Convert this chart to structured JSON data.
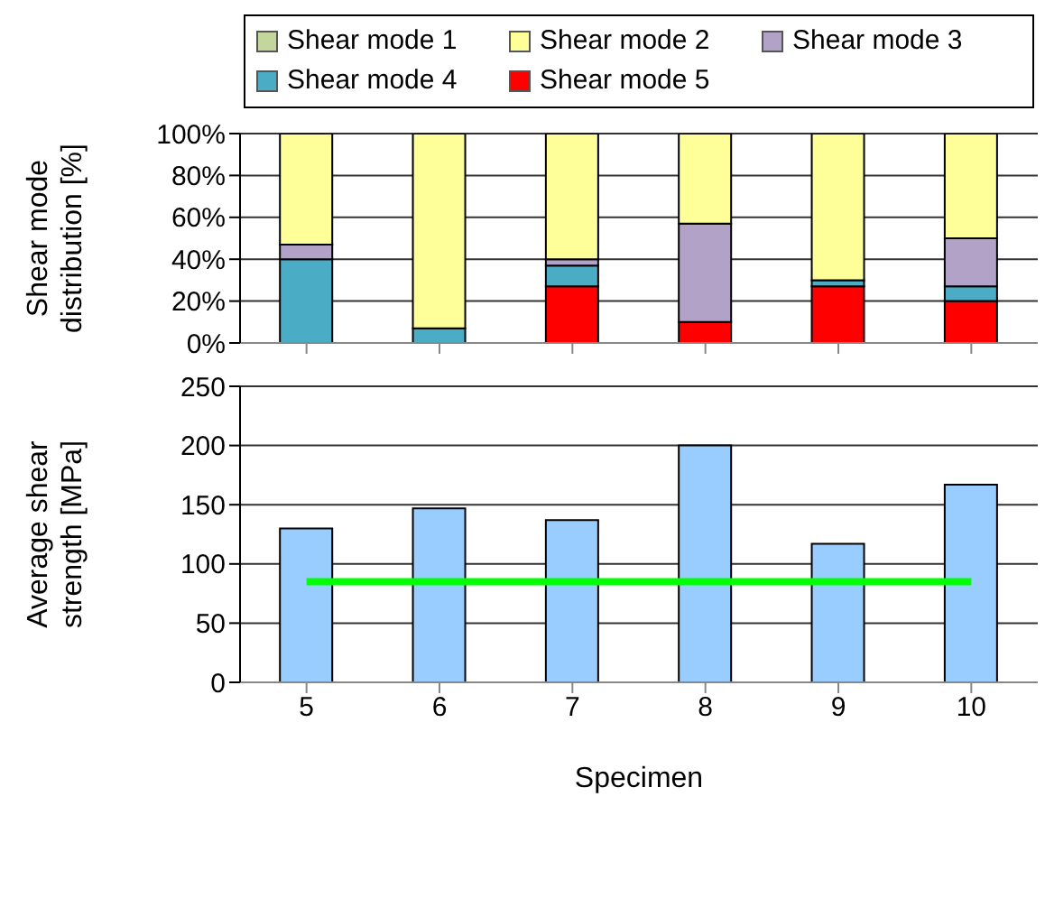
{
  "chart_data": [
    {
      "type": "bar",
      "stacked": true,
      "ylabel": "Shear mode distribution [%]",
      "categories": [
        "5",
        "6",
        "7",
        "8",
        "9",
        "10"
      ],
      "series": [
        {
          "name": "Shear mode 5",
          "color": "#ff0000",
          "values": [
            0,
            0,
            27,
            10,
            27,
            20
          ]
        },
        {
          "name": "Shear mode 4",
          "color": "#4bacc6",
          "values": [
            40,
            7,
            10,
            0,
            3,
            7
          ]
        },
        {
          "name": "Shear mode 3",
          "color": "#b2a2c7",
          "values": [
            7,
            0,
            3,
            47,
            0,
            23
          ]
        },
        {
          "name": "Shear mode 2",
          "color": "#ffff99",
          "values": [
            53,
            93,
            60,
            43,
            70,
            50
          ]
        },
        {
          "name": "Shear mode 1",
          "color": "#c3d69b",
          "values": [
            0,
            0,
            0,
            0,
            0,
            0
          ]
        }
      ],
      "ylim": [
        0,
        100
      ],
      "yticks": [
        {
          "value": 0,
          "label": "0%"
        },
        {
          "value": 20,
          "label": "20%"
        },
        {
          "value": 40,
          "label": "40%"
        },
        {
          "value": 60,
          "label": "60%"
        },
        {
          "value": 80,
          "label": "80%"
        },
        {
          "value": 100,
          "label": "100%"
        }
      ],
      "grid": "y",
      "legend": "top",
      "tick_labels": "y"
    },
    {
      "type": "bar",
      "xlabel": "Specimen",
      "ylabel": "Average shear strength [MPa]",
      "categories": [
        "5",
        "6",
        "7",
        "8",
        "9",
        "10"
      ],
      "series": [
        {
          "color": "#99ccff",
          "values": [
            130,
            147,
            137,
            200,
            117,
            167
          ]
        },
        {
          "type": "line",
          "color": "#00ff00",
          "values": [
            85,
            85,
            85,
            85,
            85,
            85
          ]
        }
      ],
      "ylim": [
        0,
        250
      ],
      "yticks": [
        0,
        50,
        100,
        150,
        200,
        250
      ],
      "grid": "y",
      "legend": false
    }
  ]
}
